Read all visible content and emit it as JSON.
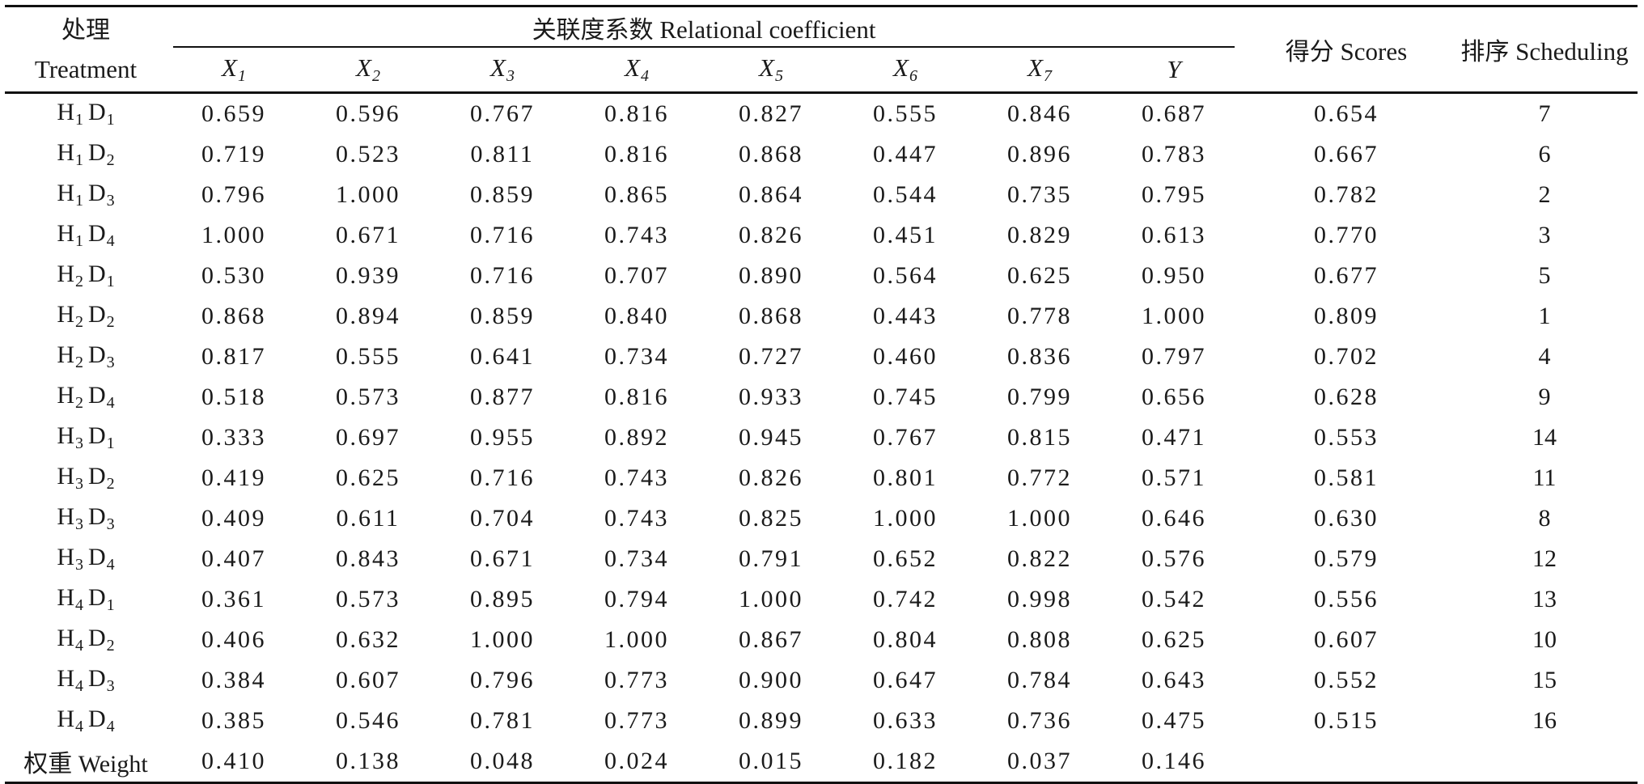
{
  "headers": {
    "treatment_cn": "处理",
    "treatment_en": "Treatment",
    "relational_cn": "关联度系数",
    "relational_en": "Relational coefficient",
    "scores_cn": "得分",
    "scores_en": "Scores",
    "rank_cn": "排序",
    "rank_en": "Scheduling",
    "variables": [
      {
        "base": "X",
        "sub": "1"
      },
      {
        "base": "X",
        "sub": "2"
      },
      {
        "base": "X",
        "sub": "3"
      },
      {
        "base": "X",
        "sub": "4"
      },
      {
        "base": "X",
        "sub": "5"
      },
      {
        "base": "X",
        "sub": "6"
      },
      {
        "base": "X",
        "sub": "7"
      },
      {
        "base": "Y",
        "sub": ""
      }
    ]
  },
  "rows": [
    {
      "h": "1",
      "d": "1",
      "values": [
        "0.659",
        "0.596",
        "0.767",
        "0.816",
        "0.827",
        "0.555",
        "0.846",
        "0.687"
      ],
      "score": "0.654",
      "rank": "7"
    },
    {
      "h": "1",
      "d": "2",
      "values": [
        "0.719",
        "0.523",
        "0.811",
        "0.816",
        "0.868",
        "0.447",
        "0.896",
        "0.783"
      ],
      "score": "0.667",
      "rank": "6"
    },
    {
      "h": "1",
      "d": "3",
      "values": [
        "0.796",
        "1.000",
        "0.859",
        "0.865",
        "0.864",
        "0.544",
        "0.735",
        "0.795"
      ],
      "score": "0.782",
      "rank": "2"
    },
    {
      "h": "1",
      "d": "4",
      "values": [
        "1.000",
        "0.671",
        "0.716",
        "0.743",
        "0.826",
        "0.451",
        "0.829",
        "0.613"
      ],
      "score": "0.770",
      "rank": "3"
    },
    {
      "h": "2",
      "d": "1",
      "values": [
        "0.530",
        "0.939",
        "0.716",
        "0.707",
        "0.890",
        "0.564",
        "0.625",
        "0.950"
      ],
      "score": "0.677",
      "rank": "5"
    },
    {
      "h": "2",
      "d": "2",
      "values": [
        "0.868",
        "0.894",
        "0.859",
        "0.840",
        "0.868",
        "0.443",
        "0.778",
        "1.000"
      ],
      "score": "0.809",
      "rank": "1"
    },
    {
      "h": "2",
      "d": "3",
      "values": [
        "0.817",
        "0.555",
        "0.641",
        "0.734",
        "0.727",
        "0.460",
        "0.836",
        "0.797"
      ],
      "score": "0.702",
      "rank": "4"
    },
    {
      "h": "2",
      "d": "4",
      "values": [
        "0.518",
        "0.573",
        "0.877",
        "0.816",
        "0.933",
        "0.745",
        "0.799",
        "0.656"
      ],
      "score": "0.628",
      "rank": "9"
    },
    {
      "h": "3",
      "d": "1",
      "values": [
        "0.333",
        "0.697",
        "0.955",
        "0.892",
        "0.945",
        "0.767",
        "0.815",
        "0.471"
      ],
      "score": "0.553",
      "rank": "14"
    },
    {
      "h": "3",
      "d": "2",
      "values": [
        "0.419",
        "0.625",
        "0.716",
        "0.743",
        "0.826",
        "0.801",
        "0.772",
        "0.571"
      ],
      "score": "0.581",
      "rank": "11"
    },
    {
      "h": "3",
      "d": "3",
      "values": [
        "0.409",
        "0.611",
        "0.704",
        "0.743",
        "0.825",
        "1.000",
        "1.000",
        "0.646"
      ],
      "score": "0.630",
      "rank": "8"
    },
    {
      "h": "3",
      "d": "4",
      "values": [
        "0.407",
        "0.843",
        "0.671",
        "0.734",
        "0.791",
        "0.652",
        "0.822",
        "0.576"
      ],
      "score": "0.579",
      "rank": "12"
    },
    {
      "h": "4",
      "d": "1",
      "values": [
        "0.361",
        "0.573",
        "0.895",
        "0.794",
        "1.000",
        "0.742",
        "0.998",
        "0.542"
      ],
      "score": "0.556",
      "rank": "13"
    },
    {
      "h": "4",
      "d": "2",
      "values": [
        "0.406",
        "0.632",
        "1.000",
        "1.000",
        "0.867",
        "0.804",
        "0.808",
        "0.625"
      ],
      "score": "0.607",
      "rank": "10"
    },
    {
      "h": "4",
      "d": "3",
      "values": [
        "0.384",
        "0.607",
        "0.796",
        "0.773",
        "0.900",
        "0.647",
        "0.784",
        "0.643"
      ],
      "score": "0.552",
      "rank": "15"
    },
    {
      "h": "4",
      "d": "4",
      "values": [
        "0.385",
        "0.546",
        "0.781",
        "0.773",
        "0.899",
        "0.633",
        "0.736",
        "0.475"
      ],
      "score": "0.515",
      "rank": "16"
    }
  ],
  "weight_row": {
    "label_cn": "权重",
    "label_en": "Weight",
    "values": [
      "0.410",
      "0.138",
      "0.048",
      "0.024",
      "0.015",
      "0.182",
      "0.037",
      "0.146"
    ]
  }
}
